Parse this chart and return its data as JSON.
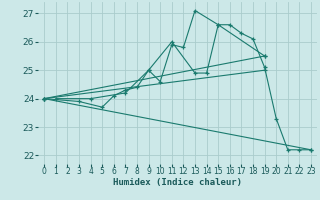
{
  "xlabel": "Humidex (Indice chaleur)",
  "bg_color": "#cce8e8",
  "grid_color": "#aacccc",
  "line_color": "#1a7a6e",
  "xlim": [
    -0.5,
    23.5
  ],
  "ylim": [
    21.7,
    27.4
  ],
  "xticks": [
    0,
    1,
    2,
    3,
    4,
    5,
    6,
    7,
    8,
    9,
    10,
    11,
    12,
    13,
    14,
    15,
    16,
    17,
    18,
    19,
    20,
    21,
    22,
    23
  ],
  "yticks": [
    22,
    23,
    24,
    25,
    26,
    27
  ],
  "lines": [
    {
      "points": [
        [
          0,
          24.0
        ],
        [
          3,
          23.9
        ],
        [
          5,
          23.7
        ],
        [
          6,
          24.1
        ],
        [
          7,
          24.3
        ],
        [
          8,
          24.4
        ],
        [
          9,
          25.0
        ],
        [
          10,
          24.6
        ],
        [
          11,
          25.9
        ],
        [
          12,
          25.8
        ],
        [
          13,
          27.1
        ],
        [
          15,
          26.6
        ],
        [
          16,
          26.6
        ],
        [
          17,
          26.3
        ],
        [
          18,
          26.1
        ],
        [
          19,
          25.1
        ],
        [
          20,
          23.3
        ],
        [
          21,
          22.2
        ],
        [
          22,
          22.2
        ],
        [
          23,
          22.2
        ]
      ]
    },
    {
      "points": [
        [
          0,
          24.0
        ],
        [
          23,
          22.2
        ]
      ]
    },
    {
      "points": [
        [
          0,
          24.0
        ],
        [
          19,
          25.5
        ]
      ]
    },
    {
      "points": [
        [
          0,
          24.0
        ],
        [
          19,
          25.0
        ]
      ]
    },
    {
      "points": [
        [
          1,
          24.0
        ],
        [
          4,
          24.0
        ],
        [
          7,
          24.2
        ],
        [
          9,
          25.0
        ],
        [
          11,
          26.0
        ],
        [
          13,
          24.9
        ],
        [
          14,
          24.9
        ],
        [
          15,
          26.6
        ],
        [
          19,
          25.5
        ]
      ]
    }
  ]
}
